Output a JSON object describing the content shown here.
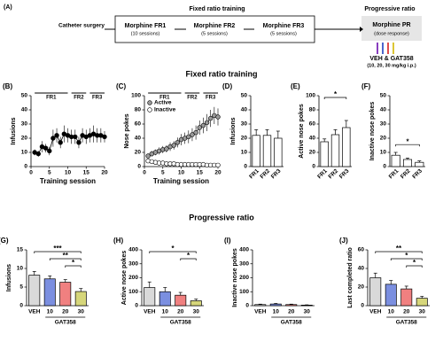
{
  "panel_a": {
    "label": "(A)",
    "surgery": "Catheter surgery",
    "fr_title": "Fixed ratio training",
    "fr1": "Morphine FR1",
    "fr1_sessions": "(10 sessions)",
    "fr2": "Morphine FR2",
    "fr2_sessions": "(5 sessions)",
    "fr3": "Morphine FR3",
    "fr3_sessions": "(5 sessions)",
    "pr_title": "Progressive ratio",
    "pr": "Morphine PR",
    "pr_note": "(dose response)",
    "treatment": "VEH & GAT358",
    "doses": "(10, 20, 30 mg/kg i.p.)"
  },
  "section_titles": [
    "Fixed ratio training",
    "Progressive ratio"
  ],
  "chart_data": [
    {
      "type": "line",
      "panel": "(B)",
      "ylabel": "Infusions",
      "xlabel": "Training session",
      "x": [
        1,
        2,
        3,
        4,
        5,
        6,
        7,
        8,
        9,
        10,
        11,
        12,
        13,
        14,
        15,
        16,
        17,
        18,
        19,
        20
      ],
      "xlim": [
        0,
        20
      ],
      "xticks": [
        0,
        5,
        10,
        15,
        20
      ],
      "ylim": [
        0,
        50
      ],
      "yticks": [
        0,
        10,
        20,
        30,
        40,
        50
      ],
      "phases": [
        {
          "label": "FR1",
          "start": 1,
          "end": 10
        },
        {
          "label": "FR2",
          "start": 11,
          "end": 15
        },
        {
          "label": "FR3",
          "start": 16,
          "end": 20
        }
      ],
      "series": [
        {
          "name": "Infusions",
          "color": "#000000",
          "values": [
            10,
            9,
            14,
            13,
            11,
            20,
            22,
            17,
            23,
            22,
            21,
            21,
            17,
            22,
            21,
            22,
            23,
            22,
            22,
            21
          ],
          "errors": [
            2,
            2,
            4,
            3,
            3,
            6,
            5,
            4,
            6,
            5,
            5,
            5,
            4,
            5,
            5,
            5,
            6,
            5,
            5,
            4
          ]
        }
      ]
    },
    {
      "type": "line",
      "panel": "(C)",
      "ylabel": "Nose pokes",
      "xlabel": "Training session",
      "x": [
        1,
        2,
        3,
        4,
        5,
        6,
        7,
        8,
        9,
        10,
        11,
        12,
        13,
        14,
        15,
        16,
        17,
        18,
        19,
        20
      ],
      "xlim": [
        0,
        20
      ],
      "xticks": [
        0,
        5,
        10,
        15,
        20
      ],
      "ylim": [
        0,
        100
      ],
      "yticks": [
        0,
        20,
        40,
        60,
        80,
        100
      ],
      "legend": "upper left",
      "phases": [
        {
          "label": "FR1",
          "start": 1,
          "end": 10
        },
        {
          "label": "FR2",
          "start": 11,
          "end": 15
        },
        {
          "label": "FR3",
          "start": 16,
          "end": 20
        }
      ],
      "series": [
        {
          "name": "Active",
          "color": "#999999",
          "values": [
            15,
            18,
            20,
            22,
            24,
            25,
            28,
            30,
            34,
            38,
            40,
            42,
            45,
            48,
            55,
            58,
            62,
            68,
            72,
            70
          ],
          "errors": [
            3,
            4,
            4,
            5,
            5,
            5,
            6,
            6,
            7,
            8,
            8,
            9,
            9,
            10,
            10,
            11,
            12,
            12,
            12,
            12
          ]
        },
        {
          "name": "Inactive",
          "color": "#ffffff",
          "values": [
            8,
            7,
            6,
            5,
            5,
            4,
            4,
            4,
            3,
            3,
            3,
            3,
            3,
            3,
            3,
            3,
            2,
            2,
            2,
            2
          ],
          "errors": [
            2,
            2,
            2,
            1,
            1,
            1,
            1,
            1,
            1,
            1,
            1,
            1,
            1,
            1,
            1,
            1,
            1,
            1,
            1,
            1
          ]
        }
      ]
    },
    {
      "type": "bar",
      "panel": "(D)",
      "ylabel": "Infusions",
      "categories": [
        "FR1",
        "FR2",
        "FR3"
      ],
      "values": [
        22,
        22,
        20
      ],
      "errors": [
        4,
        4,
        5
      ],
      "colors": [
        "#ffffff",
        "#ffffff",
        "#ffffff"
      ],
      "ylim": [
        0,
        50
      ],
      "yticks": [
        0,
        10,
        20,
        30,
        40,
        50
      ]
    },
    {
      "type": "bar",
      "panel": "(E)",
      "ylabel": "Active nose pokes",
      "categories": [
        "FR1",
        "FR2",
        "FR3"
      ],
      "values": [
        35,
        45,
        55
      ],
      "errors": [
        4,
        7,
        10
      ],
      "colors": [
        "#ffffff",
        "#ffffff",
        "#ffffff"
      ],
      "ylim": [
        0,
        100
      ],
      "yticks": [
        0,
        20,
        40,
        60,
        80,
        100
      ],
      "annotations": [
        {
          "text": "*",
          "between": [
            "FR1",
            "FR3"
          ]
        }
      ]
    },
    {
      "type": "bar",
      "panel": "(F)",
      "ylabel": "Inactive nose pokes",
      "categories": [
        "FR1",
        "FR2",
        "FR3"
      ],
      "values": [
        8,
        5,
        3
      ],
      "errors": [
        2,
        1,
        1
      ],
      "colors": [
        "#ffffff",
        "#ffffff",
        "#ffffff"
      ],
      "ylim": [
        0,
        50
      ],
      "yticks": [
        0,
        10,
        20,
        30,
        40,
        50
      ],
      "annotations": [
        {
          "text": "*",
          "between": [
            "FR1",
            "FR3"
          ]
        }
      ]
    },
    {
      "type": "bar",
      "panel": "(G)",
      "ylabel": "Infusions",
      "group_label": "GAT358",
      "categories": [
        "VEH",
        "10",
        "20",
        "30"
      ],
      "values": [
        8.2,
        7.2,
        6.3,
        3.8
      ],
      "errors": [
        1,
        0.8,
        0.7,
        0.8
      ],
      "colors": [
        "#d9d9d9",
        "#7b8fe0",
        "#f08080",
        "#d6d67a"
      ],
      "ylim": [
        0,
        15
      ],
      "yticks": [
        0,
        5,
        10,
        15
      ],
      "annotations": [
        {
          "text": "***",
          "between": [
            "VEH",
            "30"
          ]
        },
        {
          "text": "**",
          "between": [
            "10",
            "30"
          ]
        },
        {
          "text": "*",
          "between": [
            "20",
            "30"
          ]
        }
      ]
    },
    {
      "type": "bar",
      "panel": "(H)",
      "ylabel": "Active nose pokes",
      "group_label": "GAT358",
      "categories": [
        "VEH",
        "10",
        "20",
        "30"
      ],
      "values": [
        130,
        100,
        75,
        35
      ],
      "errors": [
        40,
        30,
        20,
        12
      ],
      "colors": [
        "#d9d9d9",
        "#7b8fe0",
        "#f08080",
        "#d6d67a"
      ],
      "ylim": [
        0,
        400
      ],
      "yticks": [
        0,
        100,
        200,
        300,
        400
      ],
      "annotations": [
        {
          "text": "*",
          "between": [
            "VEH",
            "30"
          ]
        },
        {
          "text": "*",
          "between": [
            "20",
            "30"
          ]
        }
      ]
    },
    {
      "type": "bar",
      "panel": "(I)",
      "ylabel": "Inactive nose pokes",
      "group_label": "GAT358",
      "categories": [
        "VEH",
        "10",
        "20",
        "30"
      ],
      "values": [
        8,
        12,
        8,
        4
      ],
      "errors": [
        3,
        4,
        3,
        2
      ],
      "colors": [
        "#d9d9d9",
        "#7b8fe0",
        "#f08080",
        "#d6d67a"
      ],
      "ylim": [
        0,
        400
      ],
      "yticks": [
        0,
        100,
        200,
        300,
        400
      ]
    },
    {
      "type": "bar",
      "panel": "(J)",
      "ylabel": "Last completed ratio",
      "group_label": "GAT358",
      "categories": [
        "VEH",
        "10",
        "20",
        "30"
      ],
      "values": [
        30,
        23,
        18,
        8
      ],
      "errors": [
        5,
        4,
        3,
        2
      ],
      "colors": [
        "#d9d9d9",
        "#7b8fe0",
        "#f08080",
        "#d6d67a"
      ],
      "ylim": [
        0,
        60
      ],
      "yticks": [
        0,
        20,
        40,
        60
      ],
      "annotations": [
        {
          "text": "**",
          "between": [
            "VEH",
            "30"
          ]
        },
        {
          "text": "*",
          "between": [
            "10",
            "30"
          ]
        },
        {
          "text": "*",
          "between": [
            "20",
            "30"
          ]
        }
      ]
    }
  ]
}
